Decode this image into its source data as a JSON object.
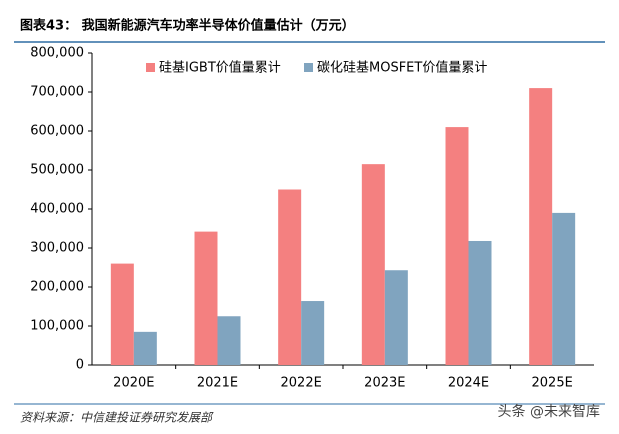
{
  "header": {
    "title": "图表43：  我国新能源汽车功率半导体价值量估计（万元）"
  },
  "chart_data": {
    "type": "bar",
    "categories": [
      "2020E",
      "2021E",
      "2022E",
      "2023E",
      "2024E",
      "2025E"
    ],
    "series": [
      {
        "name": "硅基IGBT价值量累计",
        "color": "#f48080",
        "values": [
          260000,
          342000,
          450000,
          515000,
          610000,
          710000
        ]
      },
      {
        "name": "碳化硅基MOSFET价值量累计",
        "color": "#80a4bf",
        "values": [
          85000,
          125000,
          164000,
          243000,
          318000,
          390000
        ]
      }
    ],
    "ylim": [
      0,
      800000
    ],
    "yticks": [
      0,
      {
        "value": 100000,
        "label": "100,000"
      },
      {
        "value": 200000,
        "label": "200,000"
      },
      {
        "value": 300000,
        "label": "300,000"
      },
      {
        "value": 400000,
        "label": "400,000"
      },
      {
        "value": 500000,
        "label": "500,000"
      },
      {
        "value": 600000,
        "label": "600,000"
      },
      {
        "value": 700000,
        "label": "700,000"
      },
      {
        "value": 800000,
        "label": "800,000"
      }
    ],
    "legend": "top",
    "grid": false
  },
  "footer": {
    "source": "资料来源：中信建投证券研究发展部",
    "watermark": "头条 @未来智库"
  }
}
